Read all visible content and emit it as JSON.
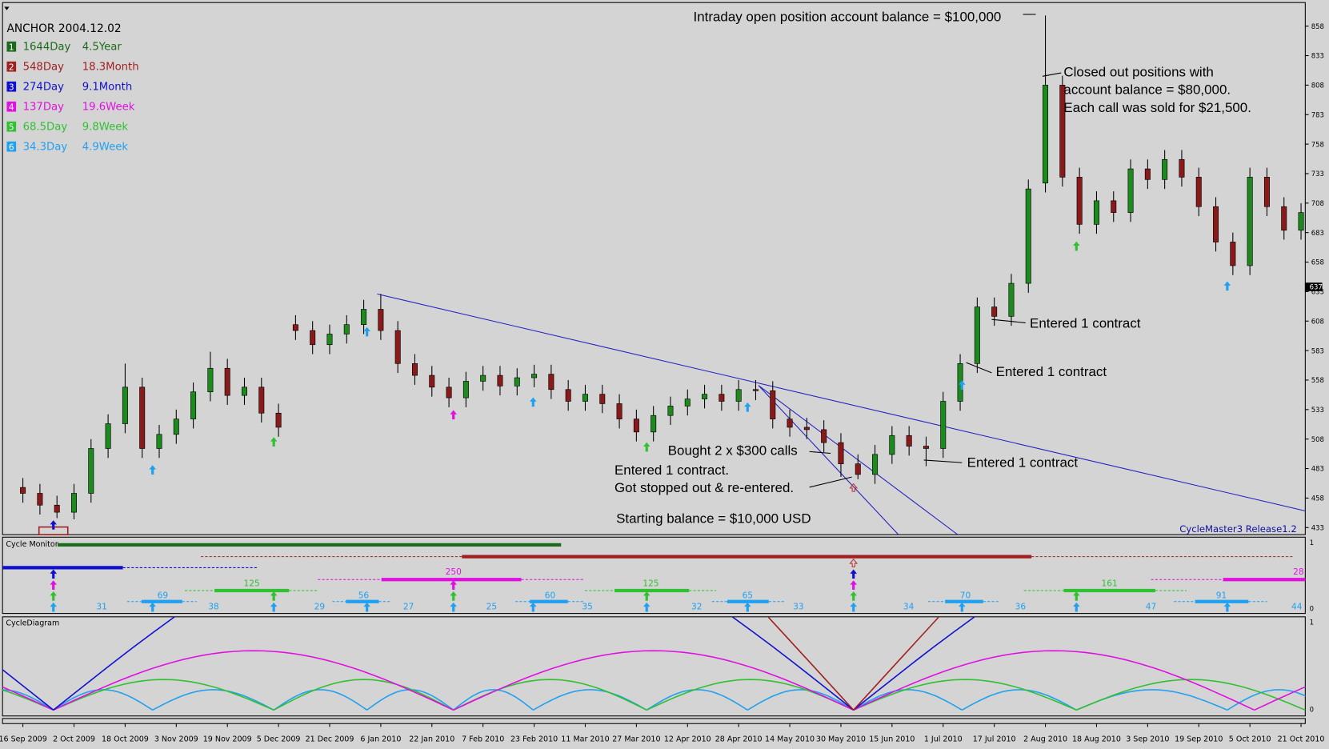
{
  "chart_data": {
    "type": "candlestick",
    "categories": [
      "16 Sep 2009",
      null,
      null,
      "2 Oct 2009",
      null,
      null,
      "18 Oct 2009",
      null,
      null,
      "3 Nov 2009",
      null,
      null,
      "19 Nov 2009",
      null,
      null,
      "5 Dec 2009",
      null,
      null,
      "21 Dec 2009",
      null,
      null,
      "6 Jan 2010",
      null,
      null,
      "22 Jan 2010",
      null,
      null,
      "7 Feb 2010",
      null,
      null,
      "23 Feb 2010",
      null,
      null,
      "11 Mar 2010",
      null,
      null,
      "27 Mar 2010",
      null,
      null,
      "12 Apr 2010",
      null,
      null,
      "28 Apr 2010",
      null,
      null,
      "14 May 2010",
      null,
      null,
      "30 May 2010",
      null,
      null,
      "15 Jun 2010",
      null,
      null,
      "1 Jul 2010",
      null,
      null,
      "17 Jul 2010",
      null,
      null,
      "2 Aug 2010",
      null,
      null,
      "18 Aug 2010",
      null,
      null,
      "3 Sep 2010",
      null,
      null,
      "19 Sep 2010",
      null,
      null,
      "5 Oct 2010",
      null,
      null,
      "21 Oct 2010"
    ],
    "open": [
      467,
      462,
      452,
      446,
      462,
      500,
      521,
      552,
      500,
      512,
      525,
      548,
      568,
      545,
      552,
      530,
      605,
      600,
      588,
      597,
      605,
      618,
      600,
      572,
      562,
      552,
      543,
      557,
      562,
      553,
      560,
      563,
      550,
      540,
      546,
      538,
      525,
      514,
      528,
      536,
      542,
      546,
      540,
      550,
      549,
      525,
      518,
      516,
      505,
      487,
      478,
      495,
      511,
      502,
      500,
      540,
      572,
      620,
      612,
      640,
      725,
      808,
      730,
      690,
      710,
      700,
      737,
      728,
      745,
      730,
      705,
      675,
      655,
      730,
      705,
      685
    ],
    "high": [
      475,
      470,
      460,
      470,
      508,
      529,
      572,
      560,
      520,
      533,
      556,
      582,
      576,
      560,
      560,
      538,
      613,
      608,
      605,
      613,
      626,
      631,
      608,
      580,
      570,
      560,
      565,
      570,
      570,
      568,
      571,
      571,
      558,
      554,
      554,
      546,
      533,
      536,
      544,
      550,
      554,
      554,
      558,
      558,
      557,
      533,
      526,
      524,
      513,
      495,
      503,
      519,
      519,
      510,
      548,
      580,
      628,
      628,
      648,
      728,
      867,
      816,
      738,
      718,
      718,
      745,
      745,
      753,
      753,
      738,
      713,
      683,
      738,
      738,
      713,
      708
    ],
    "low": [
      454,
      444,
      441,
      440,
      454,
      492,
      513,
      492,
      492,
      504,
      517,
      540,
      537,
      537,
      522,
      510,
      592,
      580,
      580,
      589,
      597,
      592,
      564,
      554,
      544,
      535,
      535,
      549,
      545,
      545,
      552,
      542,
      532,
      532,
      530,
      517,
      506,
      506,
      520,
      528,
      534,
      532,
      532,
      541,
      517,
      510,
      508,
      497,
      476,
      474,
      470,
      487,
      494,
      485,
      492,
      532,
      564,
      604,
      604,
      632,
      717,
      722,
      682,
      682,
      692,
      692,
      720,
      720,
      722,
      697,
      667,
      647,
      647,
      697,
      677,
      677
    ],
    "close": [
      462,
      452,
      446,
      462,
      500,
      521,
      552,
      500,
      512,
      525,
      548,
      568,
      545,
      552,
      530,
      518,
      600,
      588,
      597,
      605,
      618,
      600,
      572,
      562,
      552,
      543,
      557,
      562,
      553,
      560,
      563,
      550,
      540,
      546,
      538,
      525,
      514,
      528,
      536,
      542,
      546,
      540,
      550,
      549,
      525,
      518,
      516,
      505,
      487,
      478,
      495,
      511,
      502,
      500,
      540,
      572,
      620,
      612,
      640,
      720,
      808,
      730,
      690,
      710,
      700,
      737,
      728,
      745,
      730,
      705,
      675,
      655,
      730,
      705,
      685,
      700
    ],
    "ylim": [
      427,
      878
    ],
    "yticks": [
      858,
      833,
      808,
      783,
      758,
      733,
      708,
      683,
      658,
      633,
      608,
      583,
      558,
      533,
      508,
      483,
      458,
      433
    ],
    "up_color": "#1d8a1d",
    "down_color": "#8a1a1a",
    "current_price": 637
  },
  "header": {
    "anchor": "ANCHOR 2004.12.02",
    "release": "CycleMaster3 Release1.2"
  },
  "cycles": [
    {
      "number": "1",
      "period": "1644Day",
      "length": "4.5Year",
      "color": "#1a6b1a"
    },
    {
      "number": "2",
      "period": "548Day",
      "length": "18.3Month",
      "color": "#a02020"
    },
    {
      "number": "3",
      "period": "274Day",
      "length": "9.1Month",
      "color": "#1010d0"
    },
    {
      "number": "4",
      "period": "137Day",
      "length": "19.6Week",
      "color": "#e010e0"
    },
    {
      "number": "5",
      "period": "68.5Day",
      "length": "9.8Week",
      "color": "#30c030"
    },
    {
      "number": "6",
      "period": "34.3Day",
      "length": "4.9Week",
      "color": "#20a0f0"
    }
  ],
  "annotations": [
    "Intraday open position account balance = $100,000",
    "Closed out positions with",
    "account balance = $80,000.",
    "Each call was sold for $21,500.",
    "Entered 1 contract",
    "Entered 1 contract",
    "Bought 2 x $300 calls",
    "Entered 1 contract",
    "Entered 1 contract.",
    "Got stopped out & re-entered.",
    "Starting balance = $10,000 USD"
  ],
  "cycle_monitor": {
    "title": "Cycle Monitor",
    "axis": [
      1,
      0
    ],
    "labels": [
      31,
      38,
      29,
      27,
      25,
      35,
      32,
      33,
      34,
      36,
      47,
      44,
      69,
      56,
      60,
      65,
      70,
      91,
      125,
      125,
      161,
      250,
      28
    ]
  },
  "cycle_diagram": {
    "title": "CycleDiagram",
    "axis": [
      1,
      0
    ]
  }
}
